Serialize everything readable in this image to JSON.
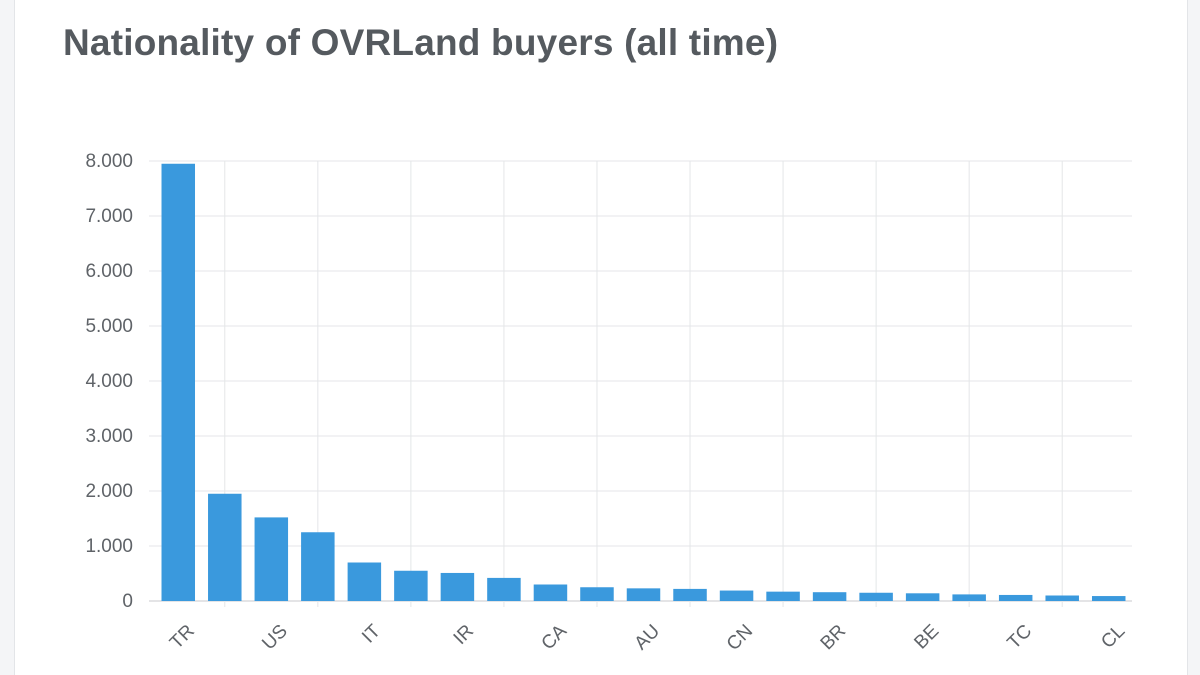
{
  "chart_data": {
    "type": "bar",
    "title": "Nationality of OVRLand buyers (all time)",
    "xlabel": "",
    "ylabel": "",
    "ylim": [
      0,
      8000
    ],
    "y_ticks": [
      "0",
      "1.000",
      "2.000",
      "3.000",
      "4.000",
      "5.000",
      "6.000",
      "7.000",
      "8.000"
    ],
    "categories": [
      "TR",
      "",
      "US",
      "",
      "IT",
      "",
      "IR",
      "",
      "CA",
      "",
      "AU",
      "",
      "CN",
      "",
      "BR",
      "",
      "BE",
      "",
      "TC",
      "",
      "CL"
    ],
    "values": [
      7950,
      1950,
      1520,
      1250,
      700,
      550,
      510,
      420,
      300,
      250,
      230,
      220,
      190,
      170,
      160,
      150,
      140,
      120,
      110,
      100,
      90
    ],
    "bar_color": "#3a99dd",
    "grid": true,
    "legend": "none"
  }
}
